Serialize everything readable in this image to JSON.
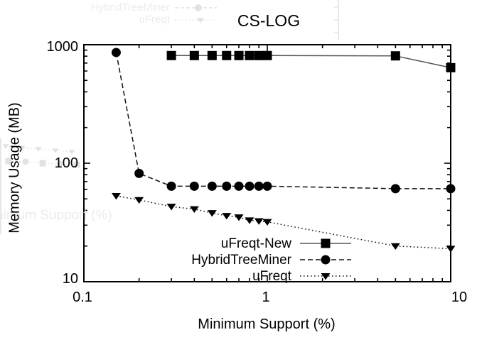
{
  "title": "CS-LOG",
  "axes": {
    "x": {
      "label": "Minimum Support (%)",
      "scale": "log",
      "min": 0.1,
      "max": 10,
      "ticks": [
        "0.1",
        "1",
        "10"
      ]
    },
    "y": {
      "label": "Memory Usage (MB)",
      "scale": "log",
      "min": 10,
      "max": 1000,
      "ticks": [
        "1000",
        "100",
        "10"
      ]
    }
  },
  "chart_data": {
    "type": "line",
    "title": "CS-LOG",
    "xlabel": "Minimum Support (%)",
    "ylabel": "Memory Usage (MB)",
    "x_scale": "log",
    "y_scale": "log",
    "xlim": [
      0.1,
      10
    ],
    "ylim": [
      10,
      1000
    ],
    "grid": false,
    "legend_position": "inside-bottom-center",
    "series": [
      {
        "name": "uFreqt-New",
        "marker": "square",
        "line_style": "solid",
        "x": [
          0.3,
          0.4,
          0.5,
          0.6,
          0.7,
          0.8,
          0.9,
          1.0,
          5,
          10
        ],
        "y": [
          810,
          810,
          810,
          810,
          810,
          810,
          810,
          810,
          805,
          640
        ]
      },
      {
        "name": "HybridTreeMiner",
        "marker": "circle",
        "line_style": "dashed",
        "x": [
          0.15,
          0.2,
          0.3,
          0.4,
          0.5,
          0.6,
          0.7,
          0.8,
          0.9,
          1.0,
          5,
          10
        ],
        "y": [
          860,
          82,
          64,
          64,
          64,
          64,
          64,
          64,
          64,
          64,
          61,
          61
        ]
      },
      {
        "name": "uFreqt",
        "marker": "triangle-down",
        "line_style": "dotted",
        "x": [
          0.15,
          0.2,
          0.3,
          0.4,
          0.5,
          0.6,
          0.7,
          0.8,
          0.9,
          1.0,
          5,
          10
        ],
        "y": [
          53,
          49,
          43,
          41,
          38,
          36,
          35,
          33,
          32.5,
          32,
          20,
          19
        ]
      }
    ]
  },
  "colors": {
    "ink": "#000000",
    "solid_line": "#555555",
    "dash_line": "#111111",
    "ghost_text": "#ececec",
    "ghost_shape": "#e2e2e2"
  },
  "ghost_artifacts": {
    "note": "faint print-through of an adjacent figure",
    "legend": [
      {
        "label": "HybridTreeMiner",
        "marker": "circle",
        "line": "dashed"
      },
      {
        "label": "uFreqt",
        "marker": "triangle-down",
        "line": "dotted"
      }
    ],
    "xlabel": "Minimum Support (%)",
    "scatter_rows": [
      {
        "marker": "triangle-down",
        "pts": [
          [
            8,
            206
          ],
          [
            31,
            208
          ],
          [
            54,
            210
          ],
          [
            78,
            212
          ],
          [
            101,
            214
          ]
        ]
      },
      {
        "marker": "mixed",
        "pts": [
          [
            12,
            227
          ],
          [
            36,
            228
          ],
          [
            60,
            230
          ],
          [
            84,
            231
          ],
          [
            108,
            232
          ]
        ]
      }
    ]
  }
}
